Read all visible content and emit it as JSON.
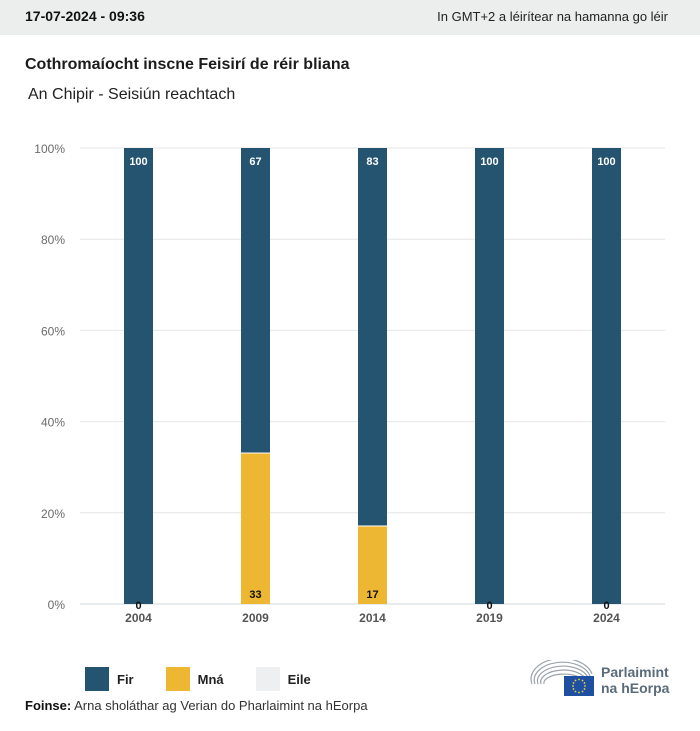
{
  "header": {
    "datetime": "17-07-2024 - 09:36",
    "timezone_note": "In GMT+2 a léirítear na hamanna go léir"
  },
  "chart_data": {
    "type": "bar",
    "stacked": true,
    "title": "Cothromaíocht inscne Feisirí de réir bliana",
    "subtitle": "An Chipir - Seisiún reachtach",
    "xlabel": "",
    "ylabel": "",
    "categories": [
      "2004",
      "2009",
      "2014",
      "2019",
      "2024"
    ],
    "series": [
      {
        "name": "Mná",
        "color": "#edb633",
        "values": [
          0,
          33,
          17,
          0,
          0
        ]
      },
      {
        "name": "Fir",
        "color": "#255470",
        "values": [
          100,
          67,
          83,
          100,
          100
        ]
      },
      {
        "name": "Eile",
        "color": "#eeeff1",
        "values": [
          0,
          0,
          0,
          0,
          0
        ]
      }
    ],
    "ylim": [
      0,
      100
    ],
    "yticks": [
      "0%",
      "20%",
      "40%",
      "60%",
      "80%",
      "100%"
    ],
    "ytick_values": [
      0,
      20,
      40,
      60,
      80,
      100
    ],
    "grid": true,
    "legend": "bottom-left"
  },
  "legend": [
    {
      "label": "Fir",
      "color": "#255470"
    },
    {
      "label": "Mná",
      "color": "#edb633"
    },
    {
      "label": "Eile",
      "color": "#eeeff1"
    }
  ],
  "footer": {
    "source_label": "Foinse:",
    "source_text": "Arna sholáthar ag Verian do Pharlaimint na hEorpa",
    "logo_line1": "Parlaimint",
    "logo_line2": "na hEorpa"
  }
}
